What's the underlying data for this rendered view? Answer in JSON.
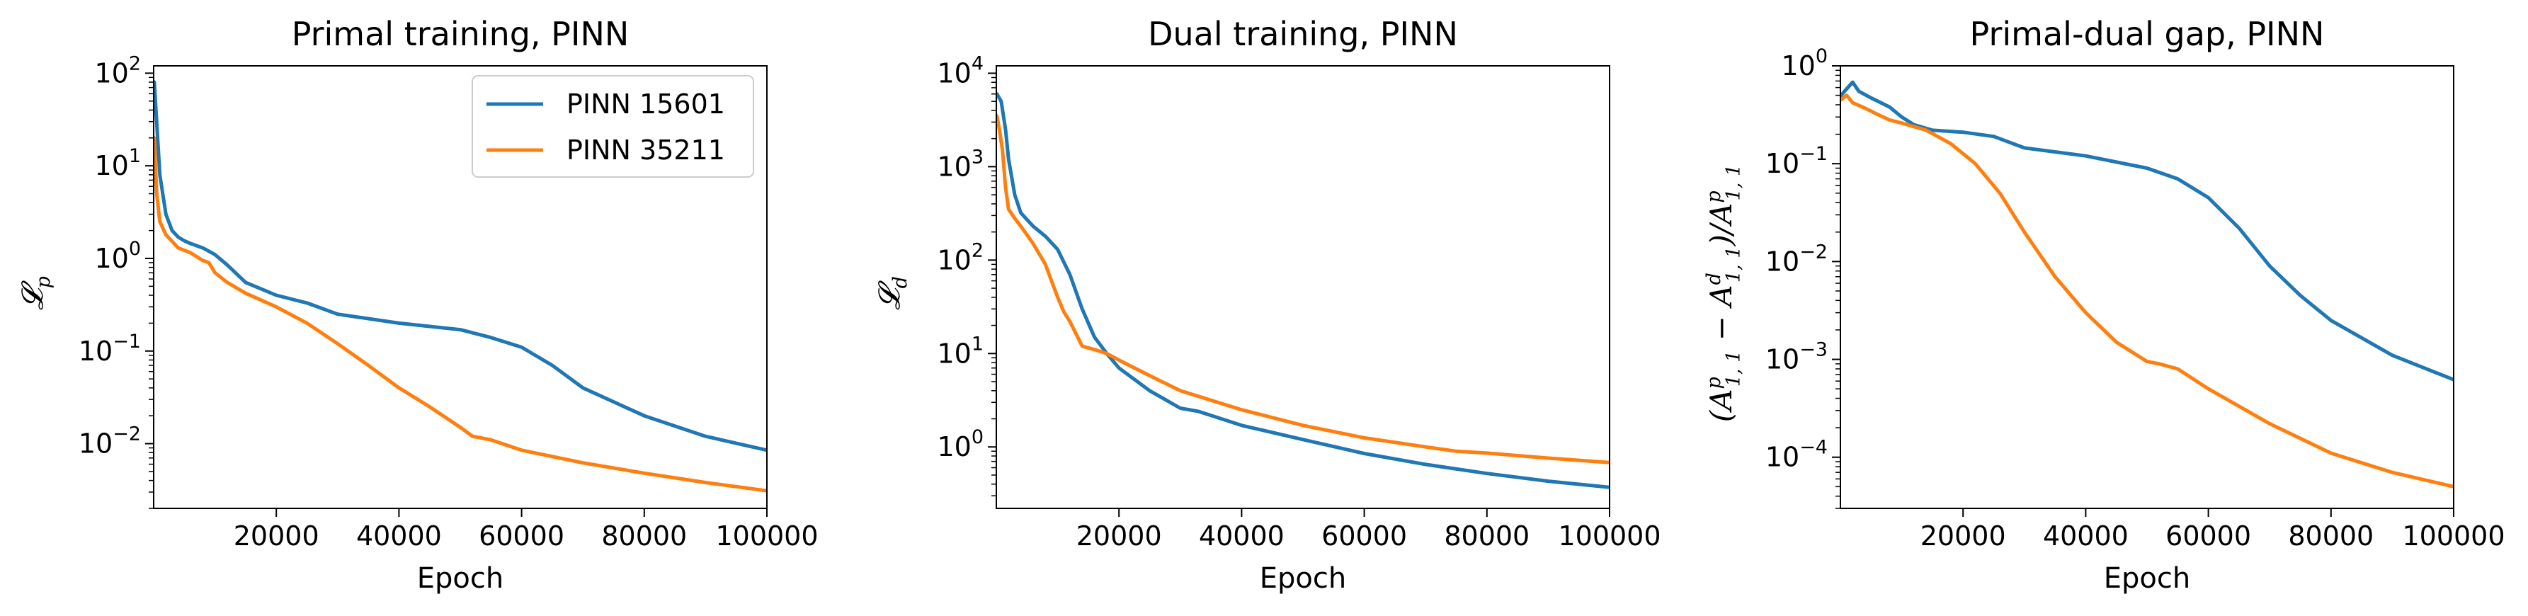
{
  "colors": {
    "blue": "#1f77b4",
    "orange": "#ff7f0e"
  },
  "chart_data": [
    {
      "type": "line",
      "title": "Primal training, PINN",
      "xlabel": "Epoch",
      "ylabel": "𝓛_p",
      "yscale": "log",
      "xlim": [
        0,
        100000
      ],
      "ylim": [
        0.002,
        120
      ],
      "xticks": [
        20000,
        40000,
        60000,
        80000,
        100000
      ],
      "xtick_labels": [
        "20000",
        "40000",
        "60000",
        "80000",
        "100000"
      ],
      "yticks": [
        0.01,
        0.1,
        1,
        10,
        100
      ],
      "ytick_labels": [
        {
          "base": "10",
          "exp": "−2"
        },
        {
          "base": "10",
          "exp": "−1"
        },
        {
          "base": "10",
          "exp": "0"
        },
        {
          "base": "10",
          "exp": "1"
        },
        {
          "base": "10",
          "exp": "2"
        }
      ],
      "legend": {
        "placement": "top-right"
      },
      "series": [
        {
          "name": "PINN 15601",
          "color": "#1f77b4",
          "x": [
            100,
            1000,
            2000,
            3000,
            4000,
            5000,
            6000,
            8000,
            10000,
            12000,
            15000,
            20000,
            25000,
            30000,
            40000,
            50000,
            55000,
            60000,
            65000,
            70000,
            80000,
            90000,
            100000
          ],
          "y": [
            80,
            8,
            3,
            2.0,
            1.7,
            1.55,
            1.45,
            1.3,
            1.1,
            0.85,
            0.55,
            0.4,
            0.33,
            0.25,
            0.2,
            0.17,
            0.14,
            0.11,
            0.07,
            0.04,
            0.02,
            0.012,
            0.0085
          ]
        },
        {
          "name": "PINN 35211",
          "color": "#ff7f0e",
          "x": [
            100,
            500,
            1000,
            2000,
            4000,
            6000,
            8000,
            9000,
            10000,
            12000,
            15000,
            20000,
            25000,
            30000,
            35000,
            40000,
            45000,
            50000,
            52000,
            55000,
            60000,
            70000,
            80000,
            90000,
            100000
          ],
          "y": [
            20,
            5,
            2.5,
            1.8,
            1.3,
            1.15,
            0.95,
            0.9,
            0.7,
            0.55,
            0.42,
            0.3,
            0.2,
            0.12,
            0.07,
            0.04,
            0.025,
            0.015,
            0.012,
            0.011,
            0.0085,
            0.0062,
            0.0048,
            0.0038,
            0.0031
          ]
        }
      ]
    },
    {
      "type": "line",
      "title": "Dual training, PINN",
      "xlabel": "Epoch",
      "ylabel": "𝓛_d",
      "yscale": "log",
      "xlim": [
        0,
        100000
      ],
      "ylim": [
        0.22,
        12000
      ],
      "xticks": [
        20000,
        40000,
        60000,
        80000,
        100000
      ],
      "xtick_labels": [
        "20000",
        "40000",
        "60000",
        "80000",
        "100000"
      ],
      "yticks": [
        1,
        10,
        100,
        1000,
        10000
      ],
      "ytick_labels": [
        {
          "base": "10",
          "exp": "0"
        },
        {
          "base": "10",
          "exp": "1"
        },
        {
          "base": "10",
          "exp": "2"
        },
        {
          "base": "10",
          "exp": "3"
        },
        {
          "base": "10",
          "exp": "4"
        }
      ],
      "series": [
        {
          "name": "",
          "color": "#1f77b4",
          "x": [
            100,
            800,
            1500,
            2000,
            3000,
            4000,
            6000,
            8000,
            10000,
            12000,
            14000,
            16000,
            18000,
            20000,
            25000,
            30000,
            33000,
            40000,
            50000,
            60000,
            70000,
            80000,
            90000,
            100000
          ],
          "y": [
            6000,
            5000,
            2500,
            1200,
            500,
            320,
            230,
            180,
            130,
            70,
            30,
            15,
            10,
            7,
            4,
            2.6,
            2.4,
            1.7,
            1.2,
            0.85,
            0.65,
            0.52,
            0.43,
            0.37
          ]
        },
        {
          "name": "",
          "color": "#ff7f0e",
          "x": [
            100,
            500,
            1000,
            1500,
            2000,
            3000,
            4000,
            6000,
            8000,
            9000,
            10000,
            11000,
            12000,
            14000,
            16000,
            18000,
            20000,
            25000,
            30000,
            40000,
            50000,
            60000,
            70000,
            75000,
            80000,
            90000,
            100000
          ],
          "y": [
            3500,
            2500,
            1500,
            600,
            350,
            280,
            230,
            150,
            90,
            60,
            40,
            28,
            22,
            12,
            11,
            10,
            8.5,
            5.8,
            4.0,
            2.5,
            1.7,
            1.25,
            1.0,
            0.9,
            0.86,
            0.76,
            0.68
          ]
        }
      ]
    },
    {
      "type": "line",
      "title": "Primal-dual gap, PINN",
      "xlabel": "Epoch",
      "ylabel": "(A^p_{1,1} − A^d_{1,1}) / A^p_{1,1}",
      "yscale": "log",
      "xlim": [
        0,
        100000
      ],
      "ylim": [
        3e-05,
        1
      ],
      "xticks": [
        20000,
        40000,
        60000,
        80000,
        100000
      ],
      "xtick_labels": [
        "20000",
        "40000",
        "60000",
        "80000",
        "100000"
      ],
      "yticks": [
        0.0001,
        0.001,
        0.01,
        0.1,
        1
      ],
      "ytick_labels": [
        {
          "base": "10",
          "exp": "−4"
        },
        {
          "base": "10",
          "exp": "−3"
        },
        {
          "base": "10",
          "exp": "−2"
        },
        {
          "base": "10",
          "exp": "−1"
        },
        {
          "base": "10",
          "exp": "0"
        }
      ],
      "ylabel_parts": {
        "open": "(",
        "a1": "A",
        "a1_sub": "1, 1",
        "a1_sup": "p",
        "minus": " − ",
        "a2": "A",
        "a2_sub": "1, 1",
        "a2_sup": "d",
        "close": ")/",
        "a3": "A",
        "a3_sub": "1, 1",
        "a3_sup": "p"
      },
      "series": [
        {
          "name": "",
          "color": "#1f77b4",
          "x": [
            100,
            1000,
            2000,
            3000,
            5000,
            8000,
            10000,
            12000,
            15000,
            20000,
            25000,
            30000,
            40000,
            50000,
            55000,
            60000,
            65000,
            70000,
            75000,
            80000,
            90000,
            100000
          ],
          "y": [
            0.5,
            0.58,
            0.68,
            0.55,
            0.47,
            0.38,
            0.3,
            0.25,
            0.22,
            0.21,
            0.19,
            0.145,
            0.12,
            0.09,
            0.07,
            0.045,
            0.022,
            0.009,
            0.0045,
            0.0025,
            0.0011,
            0.00062
          ]
        },
        {
          "name": "",
          "color": "#ff7f0e",
          "x": [
            100,
            1000,
            2000,
            4000,
            6000,
            8000,
            10000,
            14000,
            18000,
            22000,
            26000,
            30000,
            35000,
            40000,
            45000,
            50000,
            52000,
            55000,
            60000,
            70000,
            80000,
            90000,
            100000
          ],
          "y": [
            0.45,
            0.5,
            0.42,
            0.37,
            0.32,
            0.28,
            0.26,
            0.22,
            0.16,
            0.1,
            0.05,
            0.02,
            0.007,
            0.003,
            0.0015,
            0.00095,
            0.0009,
            0.0008,
            0.0005,
            0.00022,
            0.00011,
            7e-05,
            5e-05
          ]
        }
      ]
    }
  ]
}
